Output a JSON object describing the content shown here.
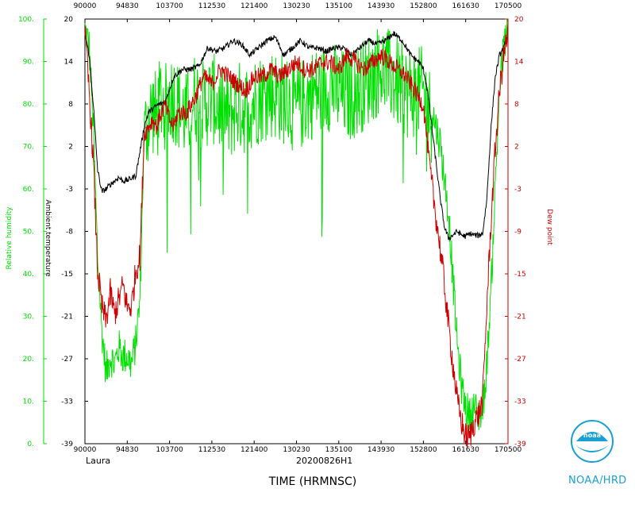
{
  "chart_data": {
    "type": "line",
    "storm": "Laura",
    "flight_id": "20200826H1",
    "xlabel": "TIME (HRMNSC)",
    "x_ticks": [
      "90000",
      "94830",
      "103700",
      "112530",
      "121400",
      "130230",
      "135100",
      "143930",
      "152800",
      "161630",
      "170500"
    ],
    "y_left_rh": {
      "label": "Relative humidity",
      "ticks": [
        "0.",
        "10.",
        "20.",
        "30.",
        "40.",
        "50.",
        "60.",
        "70.",
        "80.",
        "90.",
        "100."
      ],
      "ylim": [
        0,
        100
      ],
      "color": "#00e000"
    },
    "y_left_temp": {
      "label": "Ambient temperature",
      "ticks": [
        "-39",
        "-33",
        "-27",
        "-21",
        "-15",
        "-8",
        "-3",
        "2",
        "8",
        "14",
        "20"
      ],
      "ylim": [
        -39,
        20
      ],
      "color": "#000000"
    },
    "y_right_dew": {
      "label": "Dew point",
      "ticks": [
        "-39",
        "-33",
        "-27",
        "-21",
        "-15",
        "-9",
        "-3",
        "2",
        "8",
        "14",
        "20"
      ],
      "ylim": [
        -39,
        20
      ],
      "color": "#cc0000"
    },
    "series": [
      {
        "name": "Relative humidity",
        "color": "#00e000",
        "axis": "rh",
        "points": [
          [
            0.0,
            99
          ],
          [
            0.01,
            95
          ],
          [
            0.02,
            75
          ],
          [
            0.03,
            45
          ],
          [
            0.04,
            28
          ],
          [
            0.05,
            18
          ],
          [
            0.06,
            22
          ],
          [
            0.07,
            20
          ],
          [
            0.08,
            24
          ],
          [
            0.09,
            22
          ],
          [
            0.1,
            22
          ],
          [
            0.11,
            20
          ],
          [
            0.12,
            25
          ],
          [
            0.13,
            35
          ],
          [
            0.14,
            75
          ],
          [
            0.15,
            80
          ],
          [
            0.16,
            82
          ],
          [
            0.17,
            80
          ],
          [
            0.18,
            85
          ],
          [
            0.19,
            82
          ],
          [
            0.2,
            85
          ],
          [
            0.21,
            85
          ],
          [
            0.22,
            83
          ],
          [
            0.24,
            80
          ],
          [
            0.26,
            85
          ],
          [
            0.28,
            83
          ],
          [
            0.3,
            85
          ],
          [
            0.32,
            82
          ],
          [
            0.34,
            80
          ],
          [
            0.36,
            83
          ],
          [
            0.38,
            82
          ],
          [
            0.4,
            84
          ],
          [
            0.42,
            85
          ],
          [
            0.44,
            86
          ],
          [
            0.46,
            85
          ],
          [
            0.48,
            84
          ],
          [
            0.5,
            82
          ],
          [
            0.52,
            84
          ],
          [
            0.54,
            86
          ],
          [
            0.56,
            86
          ],
          [
            0.58,
            88
          ],
          [
            0.6,
            86
          ],
          [
            0.62,
            85
          ],
          [
            0.64,
            86
          ],
          [
            0.66,
            88
          ],
          [
            0.68,
            90
          ],
          [
            0.7,
            92
          ],
          [
            0.72,
            90
          ],
          [
            0.74,
            88
          ],
          [
            0.76,
            86
          ],
          [
            0.8,
            86
          ],
          [
            0.82,
            80
          ],
          [
            0.84,
            72
          ],
          [
            0.86,
            55
          ],
          [
            0.87,
            40
          ],
          [
            0.88,
            25
          ],
          [
            0.89,
            15
          ],
          [
            0.9,
            10
          ],
          [
            0.91,
            8
          ],
          [
            0.92,
            10
          ],
          [
            0.93,
            8
          ],
          [
            0.94,
            9
          ],
          [
            0.95,
            20
          ],
          [
            0.96,
            38
          ],
          [
            0.97,
            62
          ],
          [
            0.98,
            85
          ],
          [
            0.99,
            95
          ],
          [
            1.0,
            99
          ]
        ]
      },
      {
        "name": "Ambient temperature",
        "color": "#000000",
        "axis": "temp",
        "points": [
          [
            0.0,
            18
          ],
          [
            0.01,
            15
          ],
          [
            0.02,
            8
          ],
          [
            0.03,
            -1
          ],
          [
            0.04,
            -4
          ],
          [
            0.05,
            -3.6
          ],
          [
            0.06,
            -3
          ],
          [
            0.07,
            -2.5
          ],
          [
            0.08,
            -2
          ],
          [
            0.09,
            -2.5
          ],
          [
            0.1,
            -2.4
          ],
          [
            0.12,
            -1.8
          ],
          [
            0.14,
            5
          ],
          [
            0.15,
            7
          ],
          [
            0.17,
            8
          ],
          [
            0.19,
            8.5
          ],
          [
            0.21,
            12
          ],
          [
            0.23,
            13
          ],
          [
            0.25,
            13
          ],
          [
            0.27,
            13.5
          ],
          [
            0.29,
            16
          ],
          [
            0.31,
            15.5
          ],
          [
            0.33,
            16
          ],
          [
            0.35,
            17
          ],
          [
            0.37,
            16.5
          ],
          [
            0.39,
            15
          ],
          [
            0.41,
            16
          ],
          [
            0.43,
            17
          ],
          [
            0.45,
            17.5
          ],
          [
            0.47,
            15
          ],
          [
            0.49,
            16
          ],
          [
            0.51,
            17
          ],
          [
            0.53,
            16
          ],
          [
            0.55,
            16
          ],
          [
            0.57,
            15.5
          ],
          [
            0.59,
            16
          ],
          [
            0.61,
            16
          ],
          [
            0.63,
            15
          ],
          [
            0.65,
            16
          ],
          [
            0.67,
            17
          ],
          [
            0.69,
            16.5
          ],
          [
            0.71,
            17
          ],
          [
            0.73,
            18
          ],
          [
            0.75,
            17
          ],
          [
            0.77,
            15
          ],
          [
            0.79,
            14
          ],
          [
            0.8,
            13
          ],
          [
            0.81,
            10
          ],
          [
            0.82,
            5
          ],
          [
            0.83,
            0
          ],
          [
            0.84,
            -5
          ],
          [
            0.85,
            -9
          ],
          [
            0.86,
            -10.5
          ],
          [
            0.87,
            -10
          ],
          [
            0.88,
            -9.5
          ],
          [
            0.89,
            -10
          ],
          [
            0.9,
            -10.2
          ],
          [
            0.91,
            -9.8
          ],
          [
            0.92,
            -10
          ],
          [
            0.93,
            -10.1
          ],
          [
            0.94,
            -9.8
          ],
          [
            0.95,
            -5
          ],
          [
            0.96,
            5
          ],
          [
            0.97,
            12
          ],
          [
            0.98,
            15
          ],
          [
            0.99,
            16
          ],
          [
            1.0,
            18
          ]
        ]
      },
      {
        "name": "Dew point",
        "color": "#cc0000",
        "axis": "temp",
        "points": [
          [
            0.0,
            18
          ],
          [
            0.01,
            10
          ],
          [
            0.02,
            0
          ],
          [
            0.03,
            -15
          ],
          [
            0.04,
            -20
          ],
          [
            0.05,
            -22
          ],
          [
            0.06,
            -18
          ],
          [
            0.07,
            -21
          ],
          [
            0.08,
            -19
          ],
          [
            0.09,
            -17
          ],
          [
            0.1,
            -20
          ],
          [
            0.11,
            -20
          ],
          [
            0.12,
            -15
          ],
          [
            0.13,
            -13
          ],
          [
            0.14,
            4
          ],
          [
            0.15,
            5
          ],
          [
            0.16,
            6
          ],
          [
            0.17,
            5
          ],
          [
            0.18,
            7
          ],
          [
            0.19,
            8
          ],
          [
            0.2,
            6
          ],
          [
            0.21,
            5
          ],
          [
            0.22,
            7
          ],
          [
            0.24,
            7
          ],
          [
            0.26,
            9
          ],
          [
            0.28,
            12
          ],
          [
            0.3,
            11
          ],
          [
            0.32,
            13
          ],
          [
            0.34,
            12
          ],
          [
            0.36,
            11
          ],
          [
            0.38,
            10
          ],
          [
            0.4,
            12
          ],
          [
            0.42,
            12
          ],
          [
            0.44,
            13
          ],
          [
            0.46,
            12
          ],
          [
            0.48,
            13
          ],
          [
            0.5,
            14
          ],
          [
            0.52,
            13
          ],
          [
            0.54,
            13
          ],
          [
            0.56,
            14
          ],
          [
            0.58,
            14
          ],
          [
            0.6,
            13
          ],
          [
            0.62,
            15
          ],
          [
            0.64,
            14
          ],
          [
            0.66,
            13
          ],
          [
            0.68,
            14
          ],
          [
            0.7,
            15
          ],
          [
            0.72,
            14
          ],
          [
            0.74,
            13
          ],
          [
            0.76,
            12
          ],
          [
            0.78,
            10
          ],
          [
            0.8,
            8
          ],
          [
            0.82,
            -3
          ],
          [
            0.84,
            -12
          ],
          [
            0.85,
            -17
          ],
          [
            0.86,
            -23
          ],
          [
            0.87,
            -28
          ],
          [
            0.88,
            -33
          ],
          [
            0.89,
            -36
          ],
          [
            0.9,
            -38
          ],
          [
            0.91,
            -38
          ],
          [
            0.92,
            -36
          ],
          [
            0.93,
            -35
          ],
          [
            0.94,
            -33
          ],
          [
            0.95,
            -20
          ],
          [
            0.96,
            -8
          ],
          [
            0.97,
            2
          ],
          [
            0.98,
            10
          ],
          [
            0.99,
            15
          ],
          [
            1.0,
            18
          ]
        ]
      }
    ],
    "grid": false
  },
  "footer": {
    "storm_label": "Laura",
    "flight_label": "20200826H1",
    "org_label": "NOAA/HRD",
    "logo_text": "noaa"
  },
  "icons": {
    "logo": "noaa-logo-icon"
  }
}
